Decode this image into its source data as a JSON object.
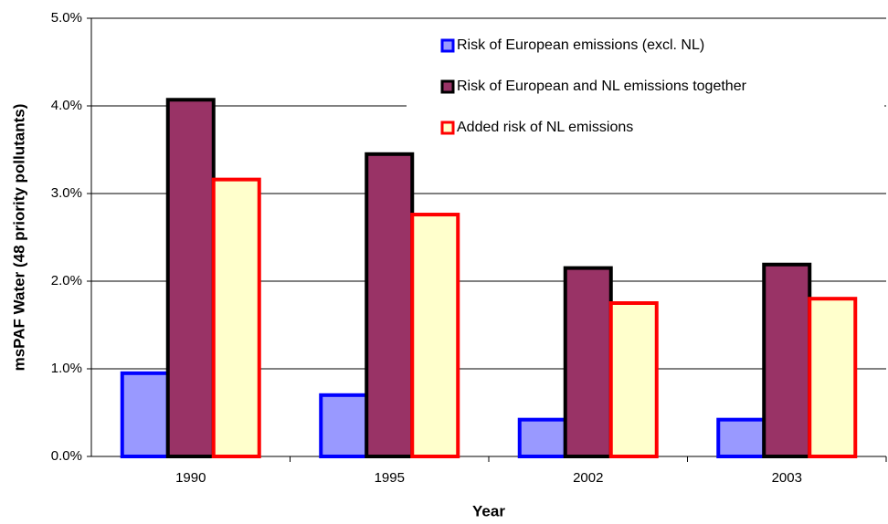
{
  "chart_data": {
    "type": "bar",
    "x_label": "Year",
    "y_label": "msPAF Water (48 priority pollutants)",
    "categories": [
      "1990",
      "1995",
      "2002",
      "2003"
    ],
    "series": [
      {
        "name": "Risk of European emissions (excl. NL)",
        "color": "#9999ff",
        "edge_color": "#0000ff",
        "values": [
          0.95,
          0.7,
          0.42,
          0.42
        ]
      },
      {
        "name": "Risk of European and NL emissions together",
        "color": "#993366",
        "edge_color": "#000000",
        "values": [
          4.07,
          3.45,
          2.15,
          2.19
        ]
      },
      {
        "name": "Added risk of NL emissions",
        "color": "#ffffcc",
        "edge_color": "#ff0000",
        "values": [
          3.16,
          2.76,
          1.75,
          1.8
        ]
      }
    ],
    "ylim": [
      0,
      5
    ],
    "yticks": [
      {
        "value": 0,
        "label": "0.0%"
      },
      {
        "value": 1,
        "label": "1.0%"
      },
      {
        "value": 2,
        "label": "2.0%"
      },
      {
        "value": 3,
        "label": "3.0%"
      },
      {
        "value": 4,
        "label": "4.0%"
      },
      {
        "value": 5,
        "label": "5.0%"
      }
    ],
    "grid": true,
    "legend_position": "upper right"
  }
}
